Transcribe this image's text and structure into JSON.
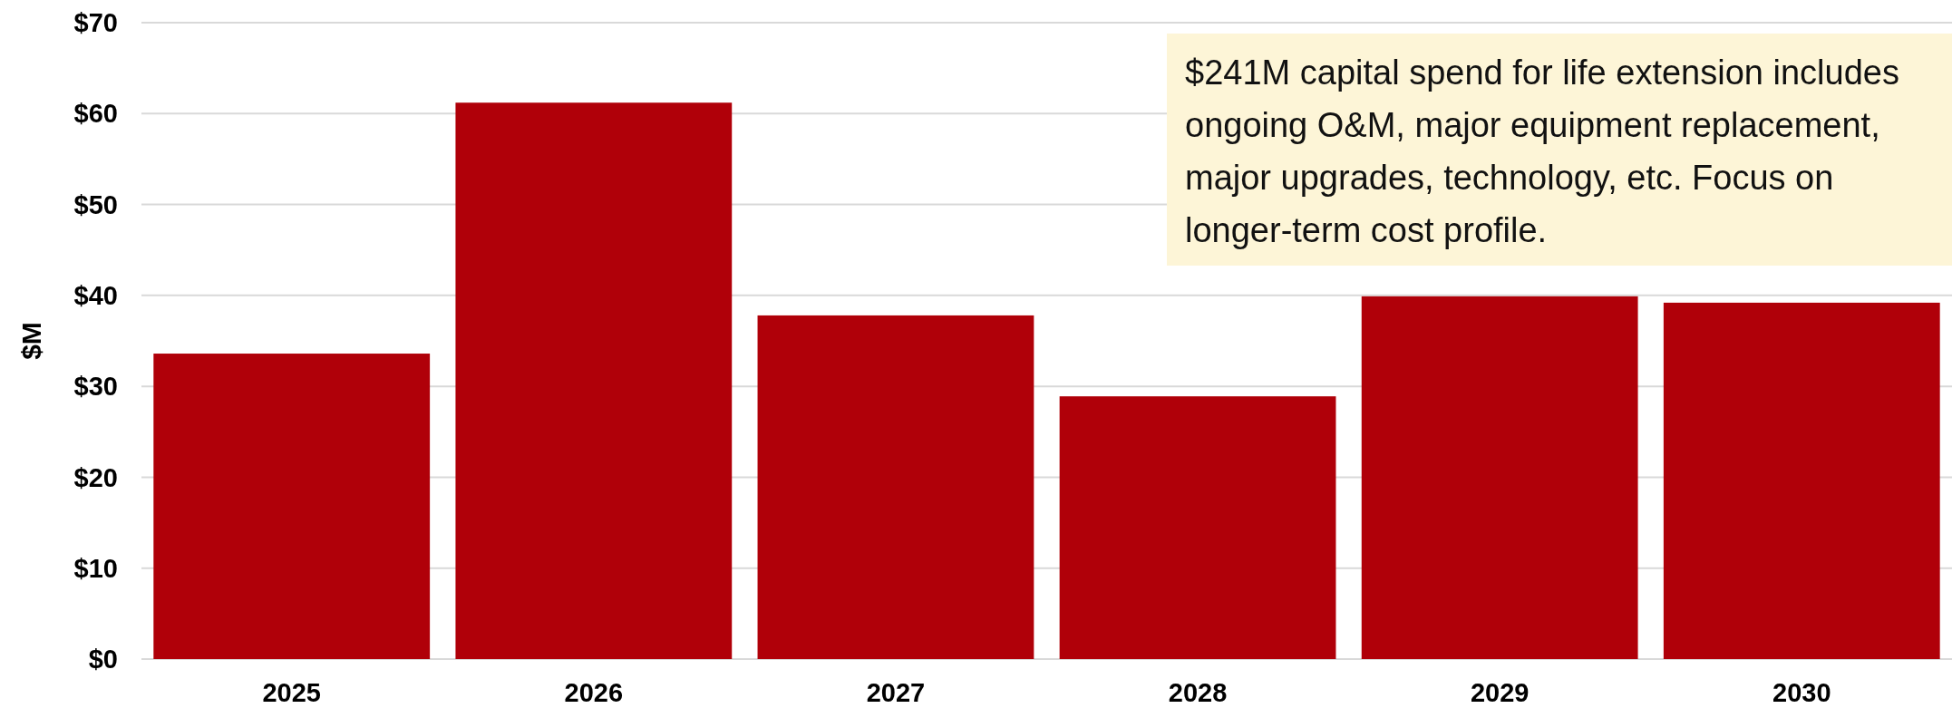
{
  "chart_data": {
    "type": "bar",
    "ylabel": "$M",
    "categories": [
      "2025",
      "2026",
      "2027",
      "2028",
      "2029",
      "2030"
    ],
    "values": [
      33.6,
      61.2,
      37.8,
      28.9,
      39.9,
      39.2
    ],
    "color": "#b00009",
    "ylim": [
      0,
      70
    ],
    "yticks": [
      {
        "value": 0,
        "label": "$0"
      },
      {
        "value": 10,
        "label": "$10"
      },
      {
        "value": 20,
        "label": "$20"
      },
      {
        "value": 30,
        "label": "$30"
      },
      {
        "value": 40,
        "label": "$40"
      },
      {
        "value": 50,
        "label": "$50"
      },
      {
        "value": 60,
        "label": "$60"
      },
      {
        "value": 70,
        "label": "$70"
      }
    ],
    "grid": "y",
    "annotations": [
      "$241M capital spend for life extension includes ongoing O&M, major equipment replacement, major upgrades, technology, etc. Focus on longer-term cost profile."
    ]
  }
}
